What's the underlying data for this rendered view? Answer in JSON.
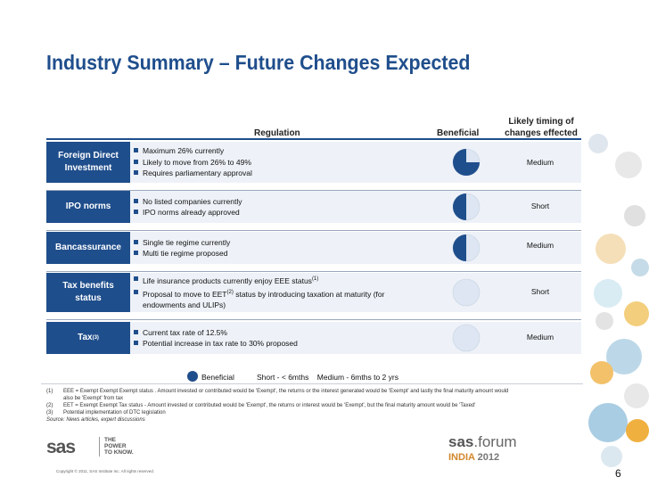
{
  "title": "Industry Summary – Future Changes Expected",
  "headers": {
    "regulation": "Regulation",
    "beneficial": "Beneficial",
    "timing_line1": "Likely timing of",
    "timing_line2": "changes effected"
  },
  "rows": [
    {
      "label": "Foreign Direct Investment",
      "bullets": [
        "Maximum 26% currently",
        "Likely to move from 26% to 49%",
        "Requires parliamentary approval"
      ],
      "beneficial_fraction": 0.75,
      "timing": "Medium"
    },
    {
      "label": "IPO norms",
      "bullets": [
        "No listed companies currently",
        "IPO norms already approved"
      ],
      "beneficial_fraction": 0.5,
      "timing": "Short"
    },
    {
      "label": "Bancassurance",
      "bullets": [
        "Single tie regime currently",
        "Multi tie regime proposed"
      ],
      "beneficial_fraction": 0.5,
      "timing": "Medium"
    },
    {
      "label": "Tax benefits status",
      "bullets": [
        "Life insurance products currently enjoy EEE status",
        "Proposal to move to EET",
        "status by introducing taxation at maturity (for",
        "endowments and ULIPs)"
      ],
      "bullet_sups": [
        "(1)",
        "(2)"
      ],
      "beneficial_fraction": 0,
      "timing": "Short"
    },
    {
      "label": "Tax",
      "label_sup": "(3)",
      "bullets": [
        "Current tax rate of 12.5%",
        "Potential increase in tax rate to 30% proposed"
      ],
      "beneficial_fraction": 0,
      "timing": "Medium"
    }
  ],
  "legend": {
    "beneficial": "Beneficial",
    "timing": "Short - < 6mths    Medium - 6mths to 2 yrs"
  },
  "footnotes": [
    {
      "num": "(1)",
      "text": "EEE = Exempt Exempt Exempt status . Amount invested or contributed would be 'Exempt', the returns or the interest generated would be 'Exempt' and lastly the final maturity amount would"
    },
    {
      "num": "",
      "text": "also be 'Exempt' from tax"
    },
    {
      "num": "(2)",
      "text": "EET = Exempt Exempt Tax status - Amount invested or contributed would be 'Exempt', the returns or interest would be 'Exempt', but the final maturity amount would be 'Taxed'"
    },
    {
      "num": "(3)",
      "text": "Potential implementation of DTC legislation"
    }
  ],
  "source": "Source:  News articles, expert discussions",
  "branding": {
    "sas": "sas",
    "tagline": [
      "THE",
      "POWER",
      "TO KNOW."
    ],
    "forum_sas": "sas",
    "forum_word": "forum",
    "forum_india": "INDIA",
    "forum_year": "2012"
  },
  "copyright": "Copyright © 2011, SAS Institute Inc. All rights reserved.",
  "page_number": "6",
  "colors": {
    "primary": "#1f4e8c",
    "row_bg": "#eef2f8",
    "pie_empty": "#dde6f2",
    "accent_orange": "#d2872b"
  }
}
